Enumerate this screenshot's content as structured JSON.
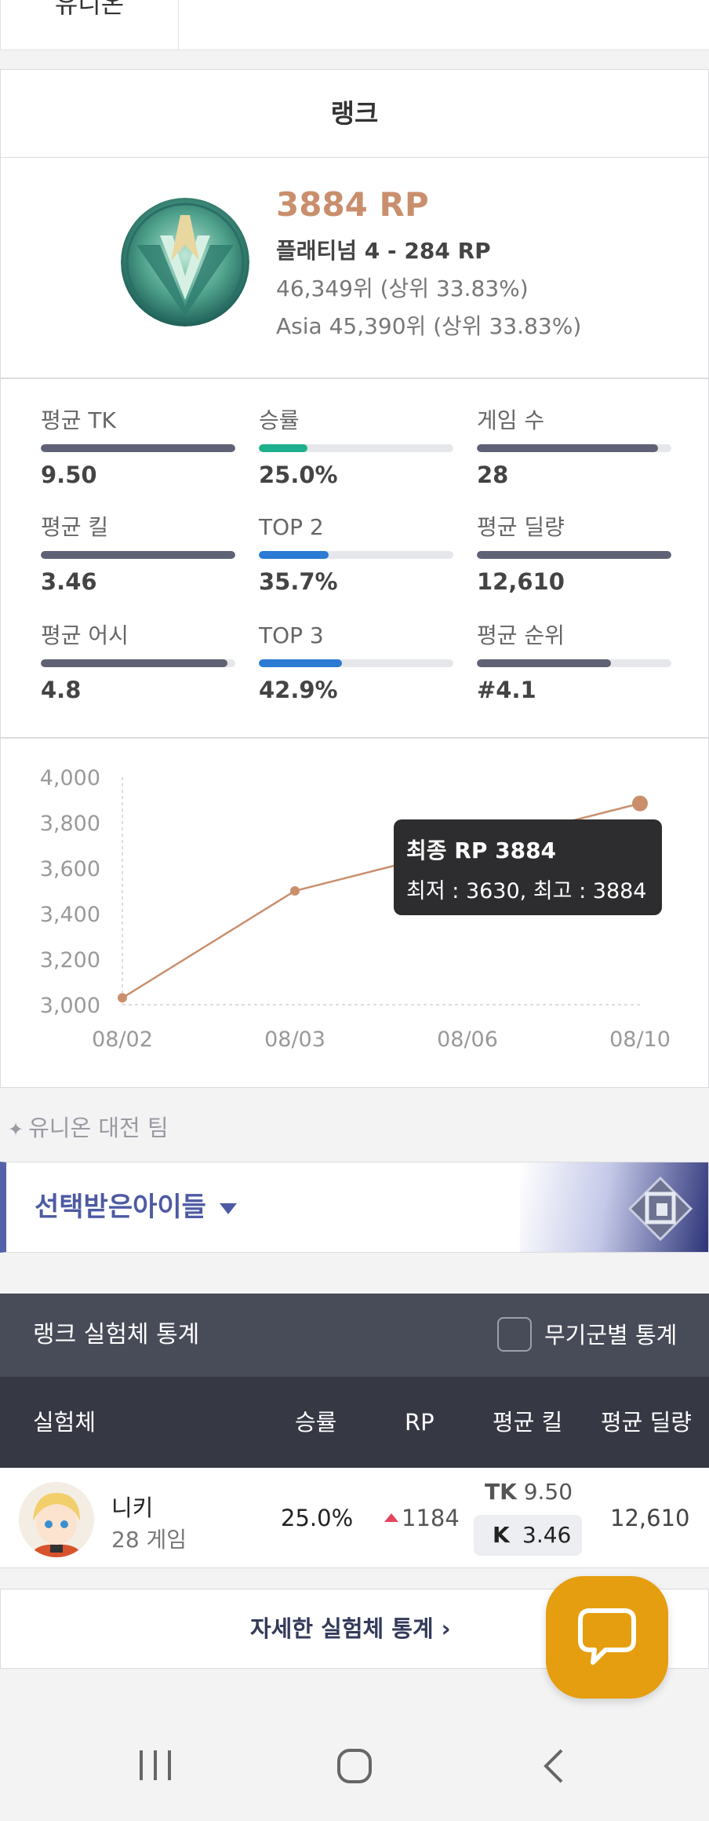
{
  "top_tabs": {
    "union_tab": "유니온"
  },
  "rank": {
    "header": "랭크",
    "rp": "3884 RP",
    "tier": "플래티넘 4 - 284 RP",
    "global_rank": "46,349위 (상위 33.83%)",
    "region_rank": "Asia 45,390위 (상위 33.83%)"
  },
  "stats": [
    {
      "label": "평균 TK",
      "value": "9.50",
      "fill": 1.0,
      "color": "#5f6175"
    },
    {
      "label": "승률",
      "value": "25.0%",
      "fill": 0.25,
      "color": "#1eb08c"
    },
    {
      "label": "게임 수",
      "value": "28",
      "fill": 0.93,
      "color": "#5f6175"
    },
    {
      "label": "평균 킬",
      "value": "3.46",
      "fill": 1.0,
      "color": "#5f6175"
    },
    {
      "label": "TOP 2",
      "value": "35.7%",
      "fill": 0.357,
      "color": "#2b7ad4"
    },
    {
      "label": "평균 딜량",
      "value": "12,610",
      "fill": 1.0,
      "color": "#5f6175"
    },
    {
      "label": "평균 어시",
      "value": "4.8",
      "fill": 0.96,
      "color": "#5f6175"
    },
    {
      "label": "TOP 3",
      "value": "42.9%",
      "fill": 0.429,
      "color": "#2b7ad4"
    },
    {
      "label": "평균 순위",
      "value": "#4.1",
      "fill": 0.69,
      "color": "#5f6175"
    }
  ],
  "chart_data": {
    "type": "line",
    "x": [
      "08/02",
      "08/03",
      "08/06",
      "08/10"
    ],
    "series": [
      {
        "values": [
          3030,
          3500,
          null,
          3884
        ]
      }
    ],
    "ylim": [
      3000,
      4000
    ],
    "yticks": [
      "4,000",
      "3,800",
      "3,600",
      "3,400",
      "3,200",
      "3,000"
    ],
    "line_color": "#c98f6d",
    "tooltip": {
      "title": "최종 RP 3884",
      "detail": "최저 : 3630, 최고 : 3884"
    }
  },
  "union": {
    "section_label": "유니온 대전 팀",
    "team_name": "선택받은아이들"
  },
  "char_stats": {
    "title": "랭크 실험체 통계",
    "checkbox_label": "무기군별 통계",
    "columns": {
      "character": "실험체",
      "winrate": "승률",
      "rp": "RP",
      "avg_kill": "평균 킬",
      "avg_damage": "평균 딜량"
    },
    "rows": [
      {
        "name": "니키",
        "games": "28 게임",
        "winrate": "25.0%",
        "rp": "1184",
        "tk_label": "TK",
        "tk": "9.50",
        "k_label": "K",
        "k": "3.46",
        "damage": "12,610"
      }
    ],
    "detail_link": "자세한 실험체 통계"
  }
}
